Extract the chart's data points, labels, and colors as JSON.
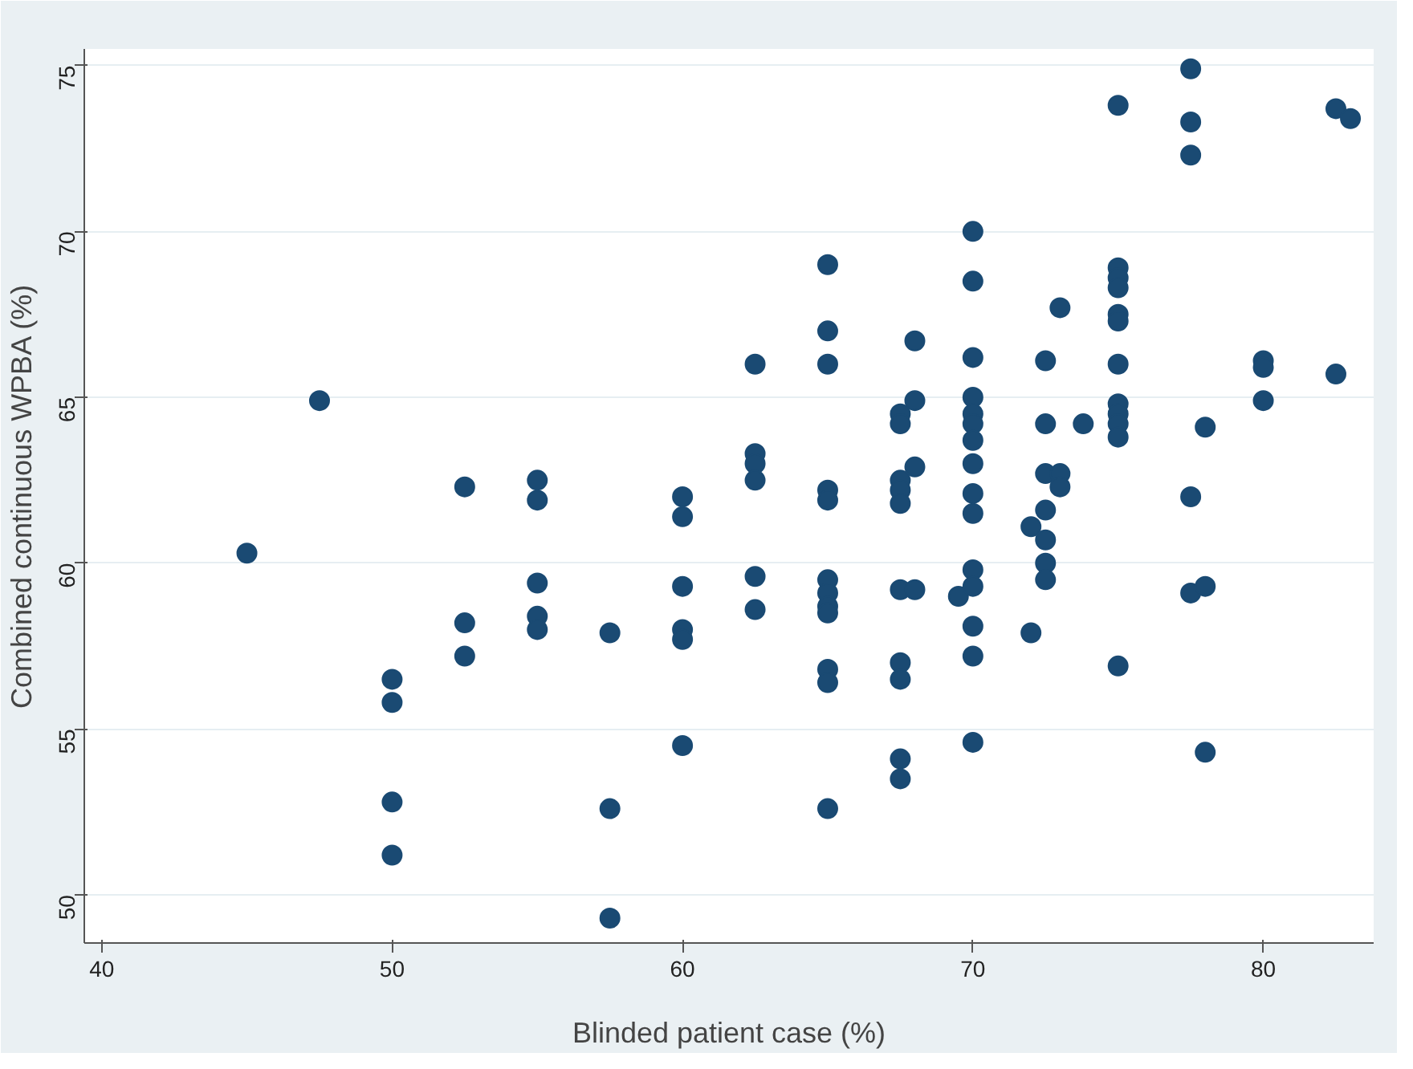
{
  "chart_data": {
    "type": "scatter",
    "xlabel": "Blinded patient case (%)",
    "ylabel": "Combined continuous WPBA (%)",
    "xlim": [
      39.4,
      83.8
    ],
    "ylim": [
      48.55,
      75.5
    ],
    "xticks": [
      40,
      50,
      60,
      70,
      80
    ],
    "yticks": [
      50,
      55,
      60,
      65,
      70,
      75
    ],
    "grid": "y",
    "marker": "circle",
    "series": [
      {
        "color": "#1a4a73",
        "x": [
          45,
          47.5,
          50,
          50,
          50,
          50,
          52.5,
          52.5,
          52.5,
          55,
          55,
          55,
          55,
          55,
          57.5,
          57.5,
          57.5,
          60,
          60,
          60,
          60,
          60,
          60,
          62.5,
          62.5,
          62.5,
          62.5,
          62.5,
          62.5,
          65,
          65,
          65,
          65,
          65,
          65,
          65,
          65,
          65,
          65,
          65,
          65,
          67.5,
          67.5,
          67.5,
          67.5,
          67.5,
          67.5,
          67.5,
          67.5,
          67.5,
          67.5,
          68,
          68,
          68,
          68,
          69.5,
          70,
          70,
          70,
          70,
          70,
          70,
          70,
          70,
          70,
          70,
          70,
          70,
          70,
          70,
          70,
          72,
          72,
          72.5,
          72.5,
          72.5,
          72.5,
          72.5,
          72.5,
          72.5,
          73,
          73,
          73,
          73.8,
          75,
          75,
          75,
          75,
          75,
          75,
          75,
          75,
          75,
          75,
          75,
          75,
          77.5,
          77.5,
          77.5,
          77.5,
          77.5,
          78,
          78,
          78,
          80,
          80,
          80,
          82.5,
          82.5,
          83
        ],
        "values": [
          60.3,
          64.9,
          56.5,
          55.8,
          52.8,
          51.2,
          62.3,
          58.2,
          57.2,
          62.5,
          61.9,
          59.4,
          58.4,
          58.0,
          57.9,
          52.6,
          49.3,
          62.0,
          61.4,
          59.3,
          58.0,
          57.7,
          54.5,
          66.0,
          63.3,
          63.0,
          62.5,
          59.6,
          58.6,
          69.0,
          67.0,
          66.0,
          62.2,
          61.9,
          59.5,
          59.1,
          58.7,
          58.5,
          56.8,
          56.4,
          52.6,
          64.5,
          64.2,
          62.5,
          62.2,
          61.8,
          59.2,
          57.0,
          56.5,
          54.1,
          53.5,
          66.7,
          64.9,
          62.9,
          59.2,
          59.0,
          70.0,
          68.5,
          66.2,
          65.0,
          64.5,
          64.2,
          63.7,
          63.0,
          62.1,
          61.5,
          59.8,
          59.3,
          58.1,
          57.2,
          54.6,
          61.1,
          57.9,
          66.1,
          64.2,
          62.7,
          61.6,
          60.7,
          60.0,
          59.5,
          67.7,
          62.7,
          62.3,
          64.2,
          73.8,
          68.9,
          68.6,
          68.3,
          67.5,
          67.3,
          66.0,
          64.8,
          64.5,
          64.2,
          63.8,
          56.9,
          74.9,
          73.3,
          72.3,
          62.0,
          59.1,
          64.1,
          59.3,
          54.3,
          66.1,
          65.9,
          64.9,
          73.7,
          65.7,
          73.4
        ]
      }
    ]
  }
}
